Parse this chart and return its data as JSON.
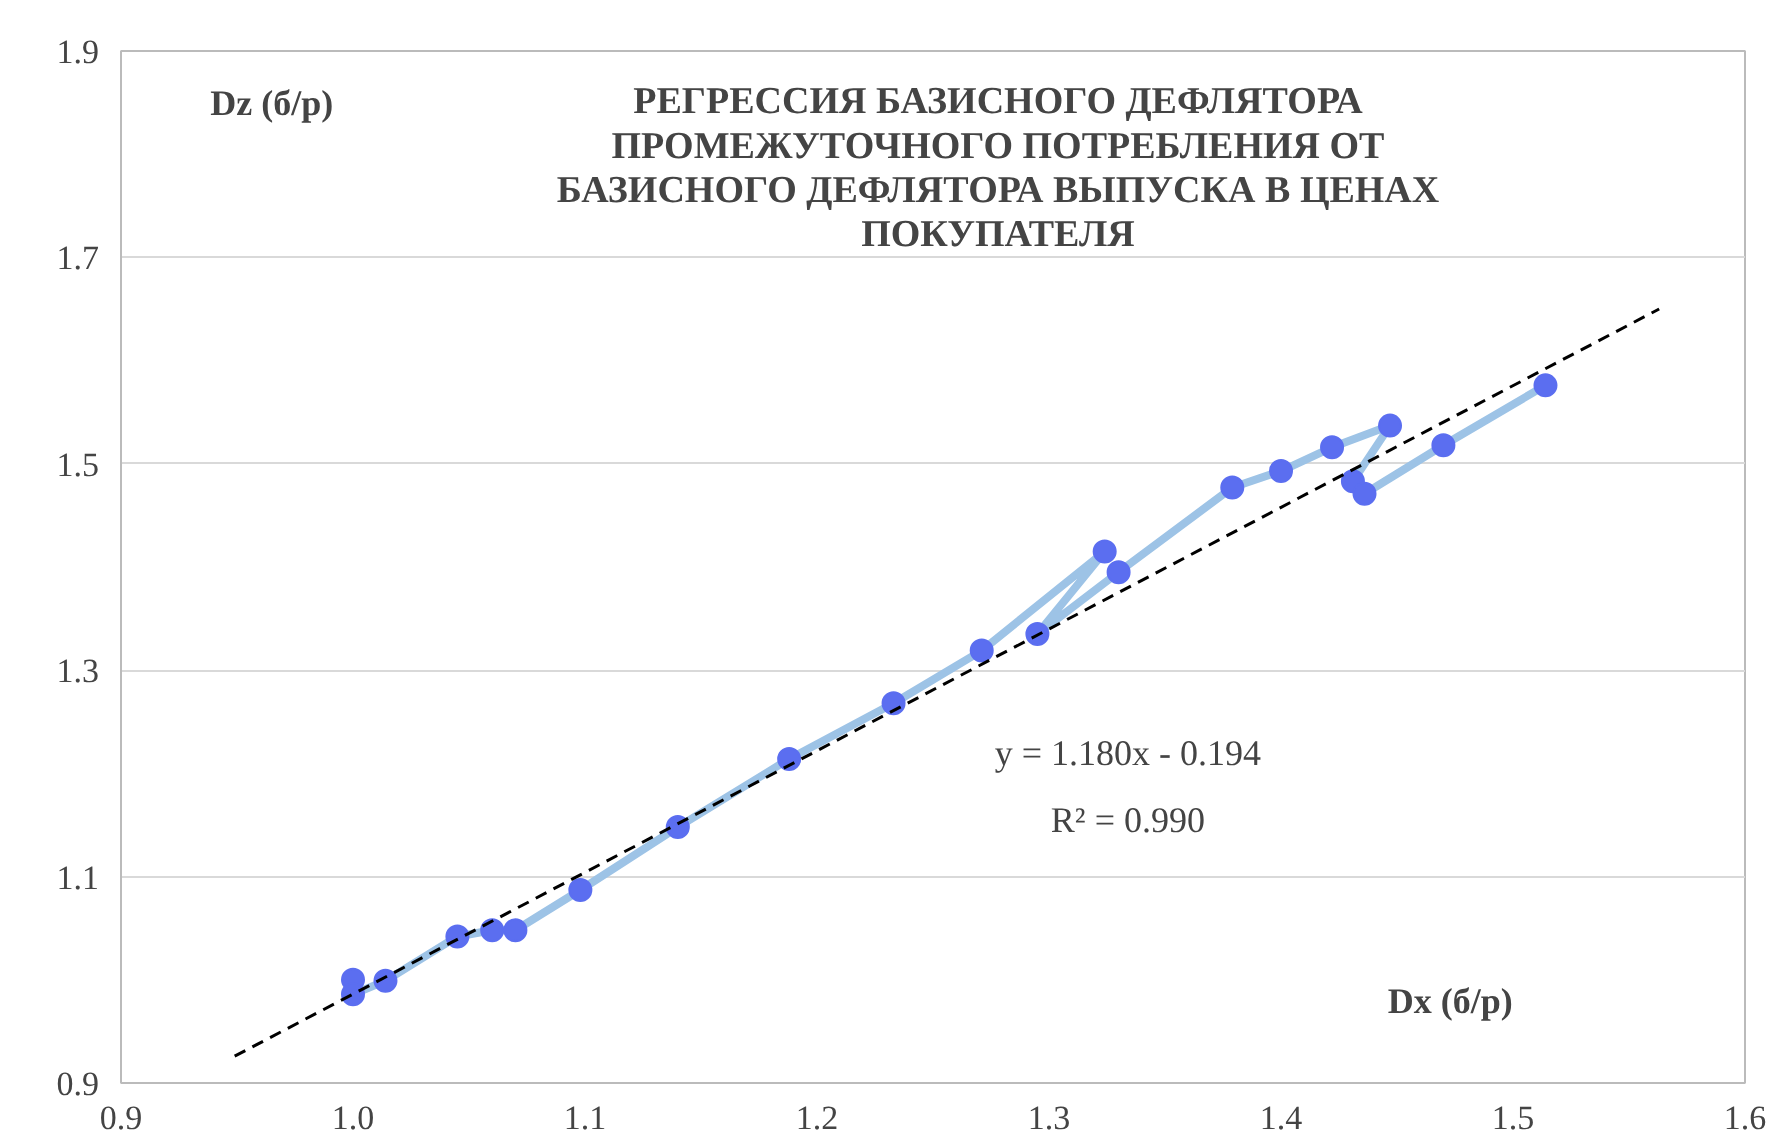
{
  "chart_data": {
    "type": "line",
    "title": "РЕГРЕССИЯ БАЗИСНОГО ДЕФЛЯТОРА\nПРОМЕЖУТОЧНОГО ПОТРЕБЛЕНИЯ ОТ\nБАЗИСНОГО ДЕФЛЯТОРА ВЫПУСКА В ЦЕНАХ\nПОКУПАТЕЛЯ",
    "xlabel": "Dx (б/р)",
    "ylabel": "Dz (б/р)",
    "xlim": [
      0.9,
      1.6
    ],
    "ylim": [
      0.9,
      1.9
    ],
    "xticks": [
      {
        "value": 0.9,
        "label": "0.9"
      },
      {
        "value": 1.0,
        "label": "1.0"
      },
      {
        "value": 1.1,
        "label": "1.1"
      },
      {
        "value": 1.2,
        "label": "1.2"
      },
      {
        "value": 1.3,
        "label": "1.3"
      },
      {
        "value": 1.4,
        "label": "1.4"
      },
      {
        "value": 1.5,
        "label": "1.5"
      },
      {
        "value": 1.6,
        "label": "1.6"
      }
    ],
    "yticks": [
      {
        "value": 0.9,
        "label": "0.9"
      },
      {
        "value": 1.1,
        "label": "1.1"
      },
      {
        "value": 1.3,
        "label": "1.3"
      },
      {
        "value": 1.5,
        "label": "1.5"
      },
      {
        "value": 1.7,
        "label": "1.7"
      },
      {
        "value": 1.9,
        "label": "1.9"
      }
    ],
    "grid": "y",
    "series": [
      {
        "color": "#9dc3e6",
        "marker": "circle",
        "colors": [
          "#5b6ef0",
          "#5b6ef0",
          "#5b6ef0",
          "#5b6ef0",
          "#5b6ef0",
          "#5b6ef0",
          "#5b6ef0",
          "#5b6ef0",
          "#5b6ef0",
          "#5b6ef0",
          "#5b6ef0",
          "#5b6ef0",
          "#5b6ef0",
          "#5b6ef0",
          "#5b6ef0",
          "#5b6ef0",
          "#5b6ef0",
          "#5b6ef0",
          "#5b6ef0",
          "#5b6ef0",
          "#5b6ef0",
          "#5b6ef0"
        ],
        "line_style": "solid",
        "x": [
          1.0,
          1.0,
          1.014,
          1.045,
          1.06,
          1.07,
          1.098,
          1.14,
          1.188,
          1.233,
          1.271,
          1.324,
          1.295,
          1.33,
          1.379,
          1.4,
          1.422,
          1.447,
          1.431,
          1.436,
          1.47,
          1.514
        ],
        "values": [
          1.0,
          0.986,
          0.999,
          1.042,
          1.048,
          1.048,
          1.087,
          1.148,
          1.214,
          1.268,
          1.319,
          1.415,
          1.335,
          1.395,
          1.477,
          1.493,
          1.516,
          1.537,
          1.483,
          1.471,
          1.518,
          1.576
        ]
      },
      {
        "color": "#000000",
        "marker": "none",
        "line_style": "dashed",
        "x": [
          0.949,
          1.563
        ],
        "values": [
          0.926,
          1.65
        ]
      }
    ],
    "annotations": [
      "y = 1.180x - 0.194",
      "R² = 0.990"
    ]
  }
}
